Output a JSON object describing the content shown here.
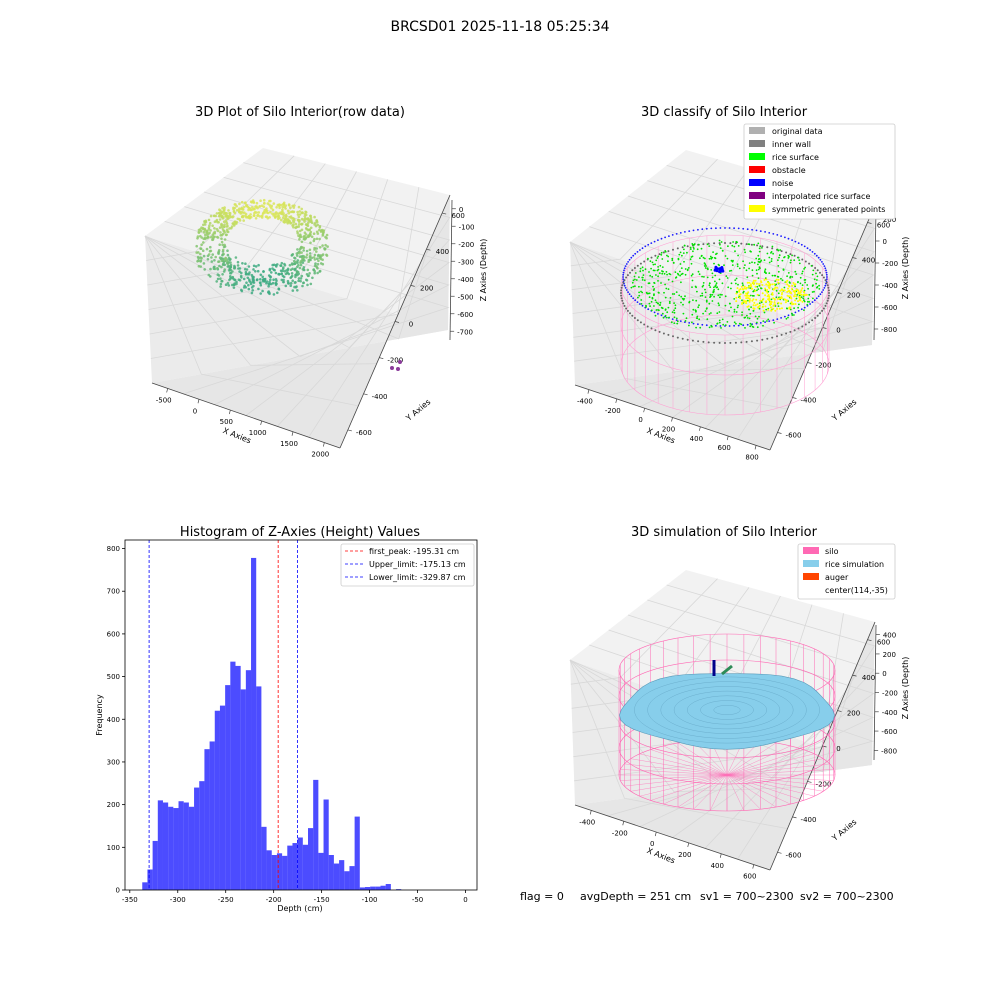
{
  "suptitle": "BRCSD01 2025-11-18 05:25:34",
  "footer": {
    "flag": "flag = 0",
    "avg": "avgDepth = 251 cm",
    "sv1": "sv1 = 700~2300",
    "sv2": "sv2 = 700~2300"
  },
  "chart_data": [
    {
      "type": "scatter",
      "projection": "3d",
      "title": "3D Plot of Silo Interior(row data)",
      "xlabel": "X Axies",
      "ylabel": "Y Axies",
      "zlabel": "Z Axies (Depth)",
      "x_ticks": [
        "-500",
        "0",
        "500",
        "1000",
        "1500",
        "2000"
      ],
      "y_ticks": [
        "-600",
        "-400",
        "-200",
        "0",
        "200",
        "400",
        "600"
      ],
      "z_ticks": [
        "0",
        "-100",
        "-200",
        "-300",
        "-400",
        "-500",
        "-600",
        "-700"
      ],
      "grid": true,
      "colormap": "viridis",
      "outlier_points": [
        {
          "x": 1900,
          "y": -350,
          "z": -500
        },
        {
          "x": 1950,
          "y": -320,
          "z": -480
        },
        {
          "x": 1920,
          "y": -380,
          "z": -510
        }
      ]
    },
    {
      "type": "scatter",
      "projection": "3d",
      "title": "3D classify of Silo Interior",
      "xlabel": "X Axies",
      "ylabel": "Y Axies",
      "zlabel": "Z Axies (Depth)",
      "x_ticks": [
        "-400",
        "-200",
        "0",
        "200",
        "400",
        "600",
        "800"
      ],
      "y_ticks": [
        "-600",
        "-400",
        "-200",
        "0",
        "200",
        "400",
        "600"
      ],
      "z_ticks": [
        "200",
        "0",
        "-200",
        "-400",
        "-600",
        "-800"
      ],
      "grid": true,
      "legend_position": "top-right",
      "legend": [
        {
          "label": "original data",
          "color": "#b0b0b0"
        },
        {
          "label": "inner wall",
          "color": "#808080"
        },
        {
          "label": "rice surface",
          "color": "#00ff00"
        },
        {
          "label": "obstacle",
          "color": "#ff0000"
        },
        {
          "label": "noise",
          "color": "#0000ff"
        },
        {
          "label": "interpolated rice surface",
          "color": "#800080"
        },
        {
          "label": "symmetric generated points",
          "color": "#ffff00"
        }
      ]
    },
    {
      "type": "bar",
      "subtype": "histogram",
      "title": "Histogram of Z-Axies (Height) Values",
      "xlabel": "Depth (cm)",
      "ylabel": "Frequency",
      "xlim": [
        -355,
        12
      ],
      "ylim": [
        0,
        820
      ],
      "x_ticks": [
        -350,
        -300,
        -250,
        -200,
        -150,
        -100,
        -50,
        0
      ],
      "y_ticks": [
        0,
        100,
        200,
        300,
        400,
        500,
        600,
        700,
        800
      ],
      "bin_width": 5.4,
      "bin_start": -337,
      "values": [
        18,
        48,
        115,
        210,
        205,
        195,
        192,
        208,
        205,
        195,
        240,
        255,
        330,
        348,
        420,
        432,
        480,
        535,
        525,
        470,
        515,
        778,
        477,
        148,
        93,
        82,
        86,
        80,
        104,
        110,
        123,
        106,
        145,
        258,
        87,
        212,
        82,
        62,
        70,
        44,
        56,
        172,
        6,
        7,
        8,
        8,
        10,
        14,
        0,
        2
      ],
      "bar_color": "#0000ff",
      "lines": [
        {
          "label": "first_peak: -195.31 cm",
          "x": -195.31,
          "color": "#ff0000"
        },
        {
          "label": "Upper_limit: -175.13 cm",
          "x": -175.13,
          "color": "#0000ff"
        },
        {
          "label": "Lower_limit: -329.87 cm",
          "x": -329.87,
          "color": "#0000ff"
        }
      ],
      "legend_position": "top-right"
    },
    {
      "type": "scatter",
      "projection": "3d",
      "title": "3D simulation of Silo Interior",
      "xlabel": "X Axies",
      "ylabel": "Y Axies",
      "zlabel": "Z Axies (Depth)",
      "x_ticks": [
        "-400",
        "-200",
        "0",
        "200",
        "400",
        "600"
      ],
      "y_ticks": [
        "-600",
        "-400",
        "-200",
        "0",
        "200",
        "400",
        "600"
      ],
      "z_ticks": [
        "400",
        "200",
        "0",
        "-200",
        "-400",
        "-600",
        "-800"
      ],
      "grid": true,
      "legend_position": "top-right",
      "legend": [
        {
          "label": "silo",
          "color": "#ff69b4"
        },
        {
          "label": "rice simulation",
          "color": "#87ceeb"
        },
        {
          "label": "auger",
          "color": "#ff4500"
        },
        {
          "label": "center(114,-35)",
          "color": ""
        }
      ]
    }
  ]
}
